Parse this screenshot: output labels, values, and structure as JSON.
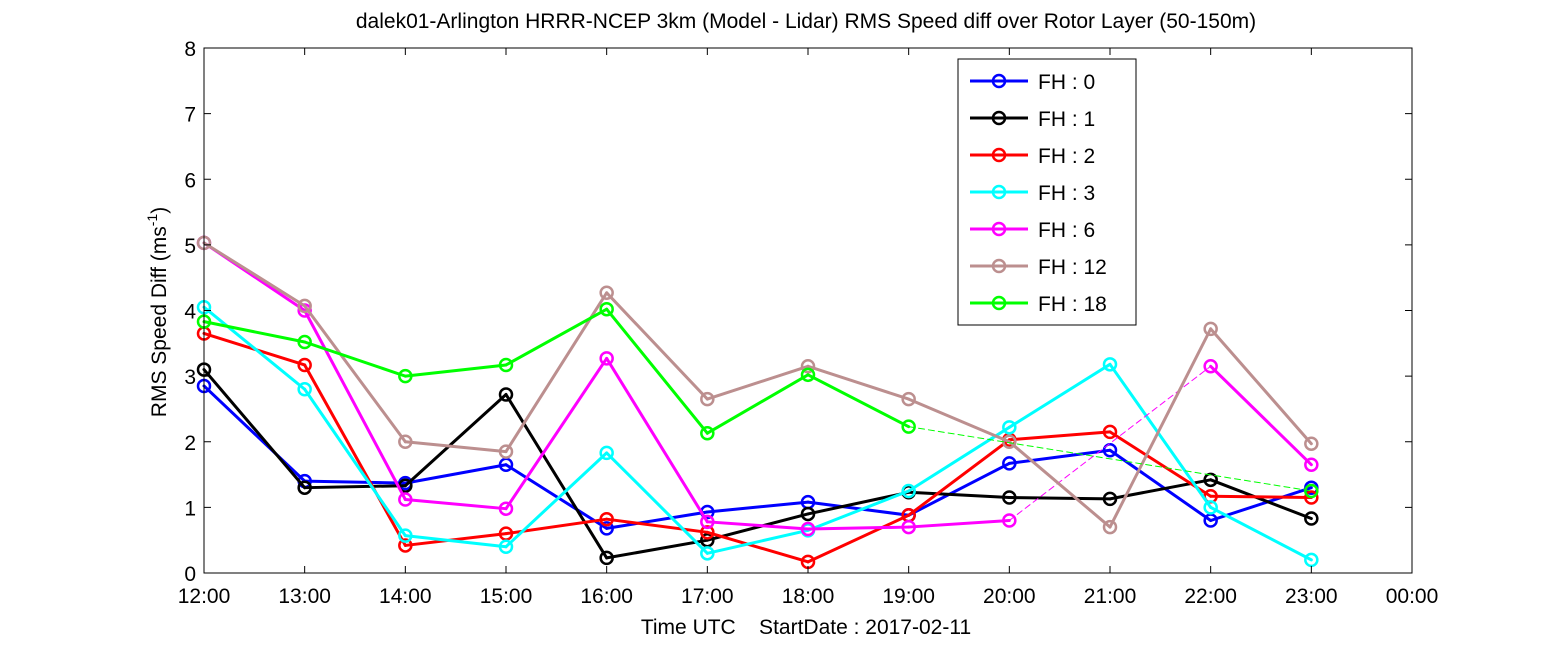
{
  "chart_data": {
    "type": "line",
    "title": "dalek01-Arlington HRRR-NCEP 3km (Model - Lidar) RMS Speed diff over Rotor Layer (50-150m)",
    "xlabel": "Time UTC    StartDate : 2017-02-11",
    "ylabel": "RMS Speed Diff (ms",
    "ylabel_sup": "-1",
    "ylabel_close": ")",
    "x_tick_labels": [
      "12:00",
      "13:00",
      "14:00",
      "15:00",
      "16:00",
      "17:00",
      "18:00",
      "19:00",
      "20:00",
      "21:00",
      "22:00",
      "23:00",
      "00:00"
    ],
    "y_ticks": [
      0,
      1,
      2,
      3,
      4,
      5,
      6,
      7,
      8
    ],
    "xlim": [
      12,
      24
    ],
    "ylim": [
      0,
      8
    ],
    "grid": false,
    "legend_position": "top-right",
    "series": [
      {
        "name": "FH : 0",
        "color": "#0000ff",
        "x": [
          12,
          13,
          14,
          15,
          16,
          17,
          18,
          19,
          20,
          21,
          22,
          23
        ],
        "y": [
          2.85,
          1.4,
          1.37,
          1.65,
          0.68,
          0.93,
          1.08,
          0.88,
          1.67,
          1.87,
          0.8,
          1.3
        ]
      },
      {
        "name": "FH : 1",
        "color": "#000000",
        "x": [
          12,
          13,
          14,
          15,
          16,
          17,
          18,
          19,
          20,
          21,
          22,
          23
        ],
        "y": [
          3.1,
          1.3,
          1.33,
          2.72,
          0.23,
          0.5,
          0.9,
          1.23,
          1.15,
          1.13,
          1.42,
          0.83
        ]
      },
      {
        "name": "FH : 2",
        "color": "#ff0000",
        "x": [
          12,
          13,
          14,
          15,
          16,
          17,
          18,
          19,
          20,
          21,
          22,
          23
        ],
        "y": [
          3.65,
          3.17,
          0.42,
          0.6,
          0.82,
          0.62,
          0.17,
          0.88,
          2.03,
          2.15,
          1.17,
          1.15
        ]
      },
      {
        "name": "FH : 3",
        "color": "#00ffff",
        "x": [
          12,
          13,
          14,
          15,
          16,
          17,
          18,
          19,
          20,
          21,
          22,
          23
        ],
        "y": [
          4.05,
          2.8,
          0.57,
          0.4,
          1.83,
          0.3,
          0.65,
          1.25,
          2.22,
          3.18,
          1.0,
          0.2
        ]
      },
      {
        "name": "FH : 6",
        "color": "#ff00ff",
        "x": [
          12,
          13,
          14,
          15,
          16,
          17,
          18,
          19,
          20,
          22,
          23
        ],
        "y": [
          5.03,
          4.0,
          1.12,
          0.98,
          3.27,
          0.78,
          0.67,
          0.7,
          0.8,
          3.15,
          1.65
        ]
      },
      {
        "name": "FH : 12",
        "color": "#bc8f8f",
        "x": [
          12,
          13,
          14,
          15,
          16,
          17,
          18,
          19,
          20,
          21,
          22,
          23
        ],
        "y": [
          5.03,
          4.07,
          2.0,
          1.85,
          4.27,
          2.65,
          3.15,
          2.65,
          2.0,
          0.7,
          3.72,
          1.97
        ]
      },
      {
        "name": "FH : 18",
        "color": "#00ff00",
        "x": [
          12,
          13,
          14,
          15,
          16,
          17,
          18,
          19,
          23
        ],
        "y": [
          3.83,
          3.52,
          3.0,
          3.17,
          4.02,
          2.13,
          3.02,
          2.23,
          1.25
        ]
      }
    ]
  }
}
